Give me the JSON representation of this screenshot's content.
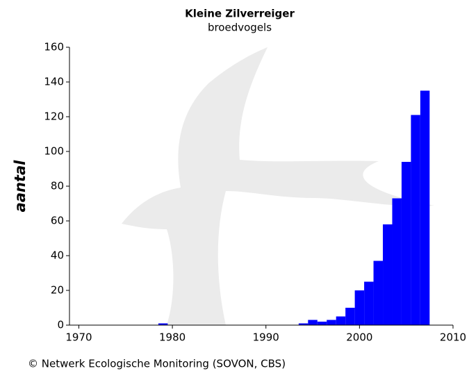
{
  "chart_data": {
    "type": "bar",
    "title": "Kleine Zilverreiger",
    "subtitle": "broedvogels",
    "y_label": "aantal",
    "footer": "© Netwerk Ecologische Monitoring (SOVON, CBS)",
    "x": [
      1979,
      1994,
      1995,
      1996,
      1997,
      1998,
      1999,
      2000,
      2001,
      2002,
      2003,
      2004,
      2005,
      2006,
      2007
    ],
    "values": [
      1,
      1,
      3,
      2,
      3,
      5,
      10,
      20,
      25,
      37,
      58,
      73,
      94,
      121,
      135
    ],
    "color": "#0000ff",
    "xlim": [
      1969,
      2010
    ],
    "xticks": [
      1970,
      1980,
      1990,
      2000,
      2010
    ],
    "ylim": [
      0,
      160
    ],
    "yticks": [
      0,
      20,
      40,
      60,
      80,
      100,
      120,
      140,
      160
    ]
  }
}
